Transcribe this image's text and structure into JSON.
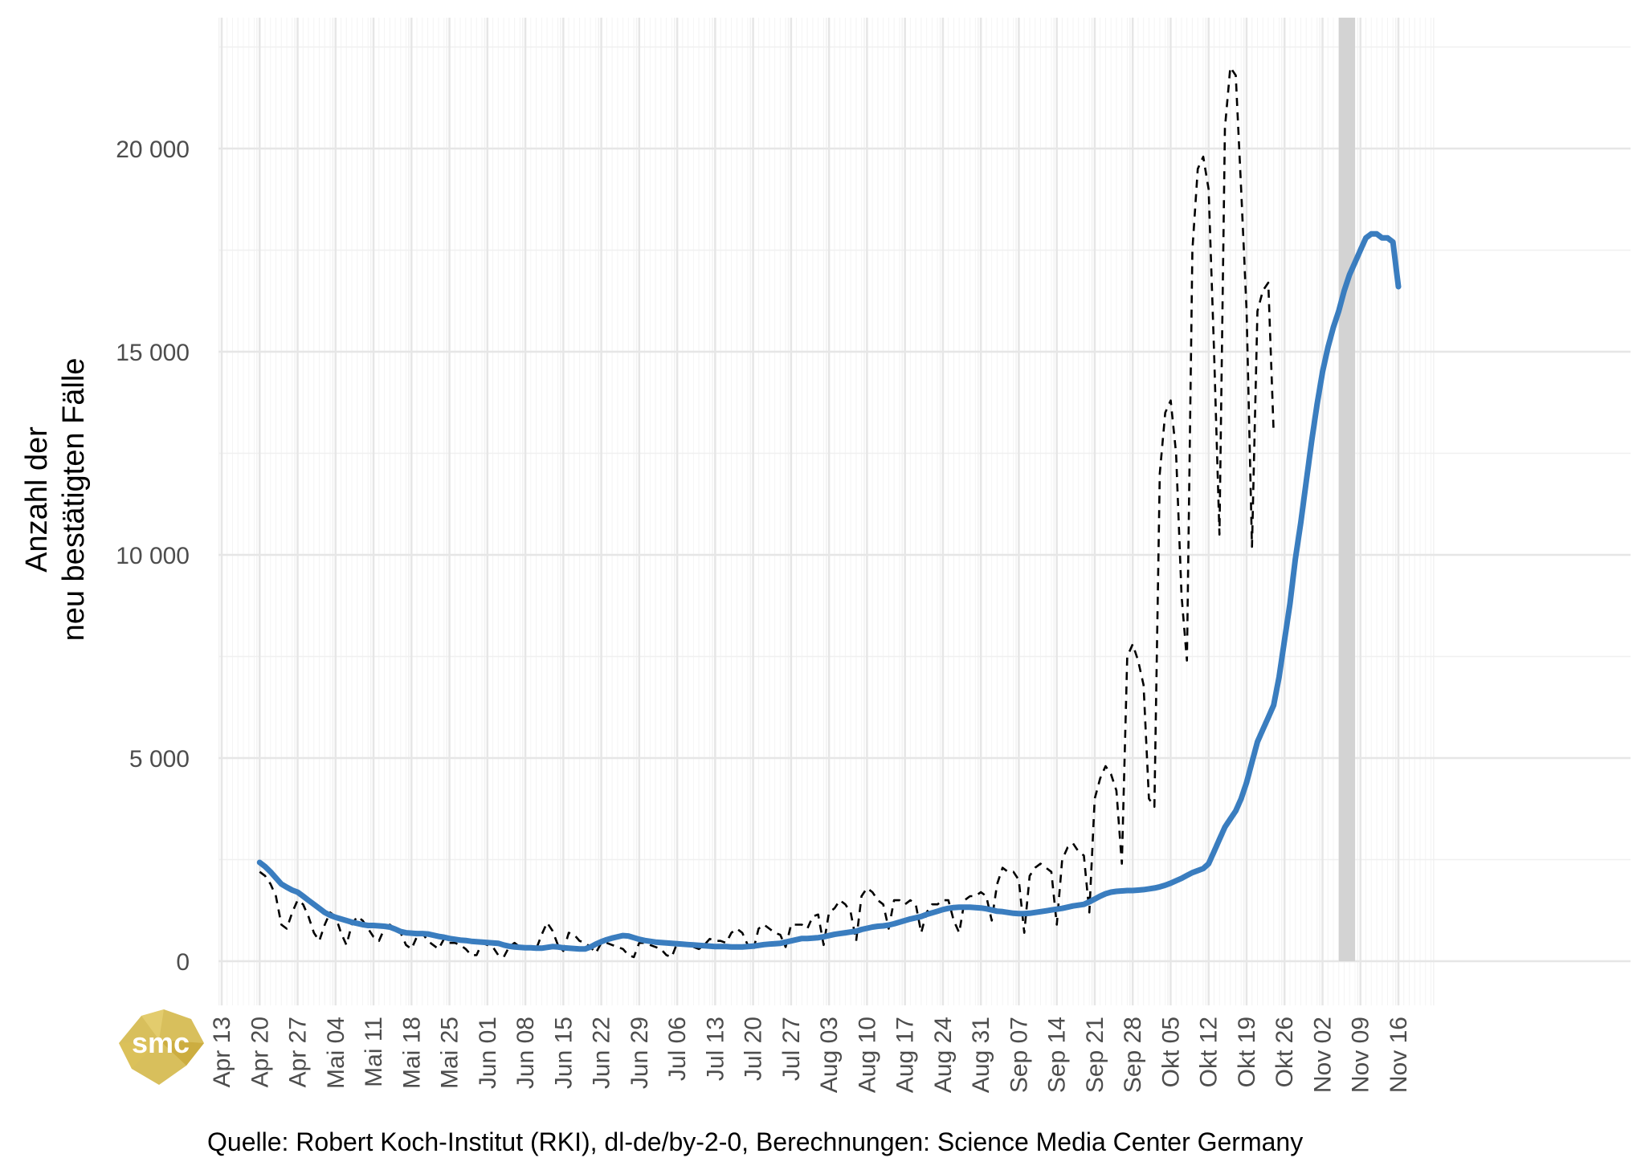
{
  "chart_data": {
    "type": "line",
    "ylabel": [
      "Anzahl der",
      "neu bestätigten Fälle"
    ],
    "y_ticks": [
      0,
      5000,
      10000,
      15000,
      20000
    ],
    "y_tick_labels": [
      "0",
      "5 000",
      "10 000",
      "15 000",
      "20 000"
    ],
    "ylim": [
      -1000,
      23000
    ],
    "x_start": "2020-04-13",
    "x_end": "2020-11-16",
    "x_tick_labels": [
      "Apr 13",
      "Apr 20",
      "Apr 27",
      "Mai 04",
      "Mai 11",
      "Mai 18",
      "Mai 25",
      "Jun 01",
      "Jun 08",
      "Jun 15",
      "Jun 22",
      "Jun 29",
      "Jul 06",
      "Jul 13",
      "Jul 20",
      "Jul 27",
      "Aug 03",
      "Aug 10",
      "Aug 17",
      "Aug 24",
      "Aug 31",
      "Sep 07",
      "Sep 14",
      "Sep 21",
      "Sep 28",
      "Okt 05",
      "Okt 12",
      "Okt 19",
      "Okt 26",
      "Nov 02",
      "Nov 09",
      "Nov 16"
    ],
    "shaded_range": [
      "2020-11-05",
      "2020-11-08"
    ],
    "shaded_color": "#d3d3d3",
    "grid": true,
    "series": [
      {
        "style": "dashed",
        "color": "#000000",
        "x_start": "2020-04-20",
        "values": [
          2200,
          2100,
          1900,
          1600,
          900,
          800,
          1200,
          1500,
          1400,
          1100,
          700,
          500,
          900,
          1200,
          1100,
          700,
          400,
          900,
          1100,
          1000,
          800,
          600,
          500,
          800,
          900,
          800,
          700,
          400,
          300,
          600,
          700,
          500,
          400,
          300,
          550,
          450,
          450,
          400,
          300,
          150,
          150,
          450,
          400,
          350,
          150,
          100,
          350,
          450,
          350,
          300,
          300,
          300,
          650,
          950,
          750,
          400,
          250,
          700,
          650,
          500,
          450,
          350,
          200,
          450,
          450,
          400,
          350,
          300,
          150,
          100,
          450,
          450,
          400,
          350,
          300,
          150,
          100,
          450,
          450,
          400,
          350,
          300,
          400,
          550,
          500,
          500,
          450,
          700,
          800,
          700,
          400,
          250,
          800,
          900,
          800,
          700,
          650,
          350,
          900,
          900,
          900,
          800,
          1100,
          1150,
          400,
          1200,
          1300,
          1500,
          1400,
          1200,
          500,
          1600,
          1800,
          1700,
          1500,
          1400,
          800,
          1500,
          1500,
          1400,
          1500,
          1400,
          700,
          1200,
          1400,
          1400,
          1500,
          1500,
          1000,
          700,
          1500,
          1600,
          1600,
          1700,
          1600,
          1000,
          1900,
          2300,
          2200,
          2200,
          2000,
          700,
          2100,
          2300,
          2400,
          2300,
          2200,
          900,
          2500,
          2800,
          2900,
          2700,
          2600,
          1200,
          4000,
          4500,
          4800,
          4600,
          4200,
          2400,
          7500,
          7800,
          7400,
          6800,
          4000,
          3800,
          12000,
          13500,
          13800,
          12500,
          9000,
          7400,
          17500,
          19500,
          19800,
          19000,
          15000,
          10500,
          20500,
          22000,
          21800,
          19000,
          16000,
          10200,
          16000,
          16500,
          16700,
          13000
        ]
      },
      {
        "style": "solid",
        "color": "#3a7dbf",
        "x_start": "2020-04-20",
        "values": [
          2430,
          2330,
          2200,
          2050,
          1900,
          1820,
          1750,
          1700,
          1600,
          1500,
          1400,
          1300,
          1200,
          1130,
          1080,
          1040,
          1000,
          960,
          930,
          900,
          880,
          880,
          870,
          860,
          840,
          790,
          730,
          700,
          690,
          680,
          680,
          670,
          640,
          610,
          590,
          560,
          540,
          520,
          510,
          490,
          480,
          470,
          460,
          450,
          440,
          400,
          370,
          350,
          340,
          330,
          330,
          320,
          320,
          340,
          360,
          350,
          330,
          320,
          310,
          300,
          300,
          350,
          420,
          480,
          530,
          570,
          600,
          630,
          620,
          580,
          540,
          510,
          490,
          470,
          460,
          450,
          440,
          430,
          420,
          410,
          400,
          390,
          380,
          370,
          360,
          360,
          360,
          350,
          350,
          350,
          360,
          370,
          390,
          410,
          420,
          430,
          440,
          470,
          500,
          530,
          560,
          560,
          570,
          580,
          600,
          630,
          660,
          680,
          700,
          720,
          740,
          780,
          810,
          840,
          860,
          870,
          890,
          920,
          960,
          1000,
          1040,
          1070,
          1100,
          1150,
          1190,
          1230,
          1270,
          1300,
          1320,
          1330,
          1330,
          1330,
          1320,
          1310,
          1290,
          1260,
          1230,
          1220,
          1200,
          1180,
          1170,
          1170,
          1180,
          1200,
          1220,
          1240,
          1260,
          1280,
          1300,
          1330,
          1360,
          1380,
          1400,
          1460,
          1530,
          1600,
          1660,
          1700,
          1720,
          1730,
          1740,
          1740,
          1750,
          1760,
          1780,
          1800,
          1830,
          1870,
          1920,
          1980,
          2040,
          2110,
          2180,
          2230,
          2280,
          2400,
          2700,
          3000,
          3300,
          3500,
          3700,
          4000,
          4400,
          4900,
          5400,
          5700,
          6000,
          6300,
          7000,
          7900,
          8800,
          9900,
          10800,
          11800,
          12800,
          13700,
          14500,
          15100,
          15600,
          16000,
          16500,
          16900,
          17200,
          17500,
          17800,
          17900,
          17900,
          17800,
          17800,
          17700,
          16600
        ]
      }
    ]
  },
  "caption": "Quelle: Robert Koch-Institut (RKI), dl-de/by-2-0, Berechnungen: Science Media Center Germany",
  "logo_text": "smc",
  "logo_color": "#d4b84a"
}
